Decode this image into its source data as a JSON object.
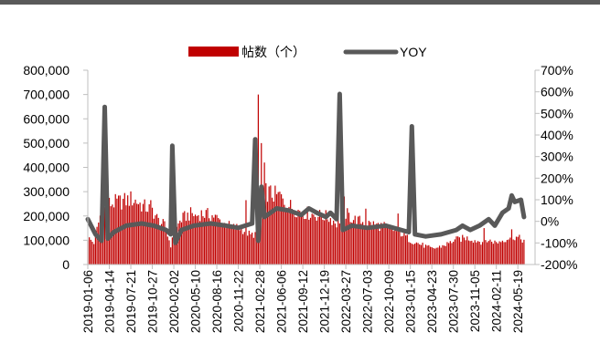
{
  "chart_data": {
    "type": "bar+line",
    "title": "",
    "legend": {
      "placement": "top-center",
      "entries": [
        {
          "name": "帖数（个）",
          "kind": "bar",
          "color": "#c00000"
        },
        {
          "name": "YOY",
          "kind": "line",
          "color": "#595959"
        }
      ]
    },
    "y_left": {
      "range": [
        0,
        800000
      ],
      "ticks": [
        0,
        100000,
        200000,
        300000,
        400000,
        500000,
        600000,
        700000,
        800000
      ],
      "tick_labels": [
        "0",
        "100,000",
        "200,000",
        "300,000",
        "400,000",
        "500,000",
        "600,000",
        "700,000",
        "800,000"
      ]
    },
    "y_right": {
      "range": [
        -200,
        700
      ],
      "ticks": [
        -200,
        -100,
        0,
        100,
        200,
        300,
        400,
        500,
        600,
        700
      ],
      "tick_labels": [
        "-200%",
        "-100%",
        "0%",
        "100%",
        "200%",
        "300%",
        "400%",
        "500%",
        "600%",
        "700%"
      ]
    },
    "x_labels": [
      "2019-01-06",
      "2019-04-14",
      "2019-07-21",
      "2019-10-27",
      "2020-02-02",
      "2020-05-10",
      "2020-08-16",
      "2020-11-22",
      "2021-02-28",
      "2021-06-06",
      "2021-09-12",
      "2021-12-19",
      "2022-03-27",
      "2022-07-03",
      "2022-10-09",
      "2023-01-15",
      "2023-04-23",
      "2023-07-30",
      "2023-11-05",
      "2024-02-11",
      "2024-05-19"
    ],
    "bar_anchors": [
      [
        "2019-01-06",
        110000
      ],
      [
        "2019-02-03",
        90000
      ],
      [
        "2019-03-03",
        200000
      ],
      [
        "2019-03-31",
        240000
      ],
      [
        "2019-04-14",
        250000
      ],
      [
        "2019-05-12",
        255000
      ],
      [
        "2019-06-09",
        260000
      ],
      [
        "2019-07-07",
        265000
      ],
      [
        "2019-07-21",
        270000
      ],
      [
        "2019-08-18",
        260000
      ],
      [
        "2019-09-15",
        240000
      ],
      [
        "2019-10-13",
        230000
      ],
      [
        "2019-10-27",
        225000
      ],
      [
        "2019-11-24",
        180000
      ],
      [
        "2019-12-22",
        160000
      ],
      [
        "2020-01-19",
        80000
      ],
      [
        "2020-02-02",
        120000
      ],
      [
        "2020-03-01",
        180000
      ],
      [
        "2020-03-29",
        200000
      ],
      [
        "2020-04-26",
        210000
      ],
      [
        "2020-05-10",
        200000
      ],
      [
        "2020-06-07",
        210000
      ],
      [
        "2020-07-05",
        205000
      ],
      [
        "2020-08-02",
        200000
      ],
      [
        "2020-08-16",
        190000
      ],
      [
        "2020-09-13",
        170000
      ],
      [
        "2020-10-11",
        160000
      ],
      [
        "2020-11-08",
        150000
      ],
      [
        "2020-11-22",
        155000
      ],
      [
        "2020-12-20",
        140000
      ],
      [
        "2021-01-17",
        120000
      ],
      [
        "2021-02-14",
        130000
      ],
      [
        "2021-02-28",
        240000
      ],
      [
        "2021-03-28",
        300000
      ],
      [
        "2021-04-25",
        290000
      ],
      [
        "2021-05-23",
        280000
      ],
      [
        "2021-06-06",
        270000
      ],
      [
        "2021-07-04",
        250000
      ],
      [
        "2021-08-01",
        230000
      ],
      [
        "2021-08-29",
        220000
      ],
      [
        "2021-09-12",
        215000
      ],
      [
        "2021-10-10",
        210000
      ],
      [
        "2021-11-07",
        205000
      ],
      [
        "2021-12-05",
        200000
      ],
      [
        "2021-12-19",
        200000
      ],
      [
        "2022-01-16",
        190000
      ],
      [
        "2022-02-13",
        170000
      ],
      [
        "2022-03-13",
        200000
      ],
      [
        "2022-03-27",
        210000
      ],
      [
        "2022-04-24",
        190000
      ],
      [
        "2022-05-22",
        180000
      ],
      [
        "2022-06-19",
        175000
      ],
      [
        "2022-07-03",
        170000
      ],
      [
        "2022-07-31",
        165000
      ],
      [
        "2022-08-28",
        160000
      ],
      [
        "2022-09-25",
        155000
      ],
      [
        "2022-10-09",
        150000
      ],
      [
        "2022-11-06",
        140000
      ],
      [
        "2022-12-04",
        130000
      ],
      [
        "2023-01-01",
        110000
      ],
      [
        "2023-01-15",
        100000
      ],
      [
        "2023-02-12",
        90000
      ],
      [
        "2023-03-12",
        80000
      ],
      [
        "2023-04-09",
        70000
      ],
      [
        "2023-04-23",
        65000
      ],
      [
        "2023-05-21",
        70000
      ],
      [
        "2023-06-18",
        80000
      ],
      [
        "2023-07-16",
        90000
      ],
      [
        "2023-07-30",
        100000
      ],
      [
        "2023-08-27",
        105000
      ],
      [
        "2023-09-24",
        110000
      ],
      [
        "2023-10-22",
        105000
      ],
      [
        "2023-11-05",
        100000
      ],
      [
        "2023-12-03",
        95000
      ],
      [
        "2023-12-31",
        100000
      ],
      [
        "2024-01-28",
        95000
      ],
      [
        "2024-02-11",
        90000
      ],
      [
        "2024-03-10",
        100000
      ],
      [
        "2024-04-07",
        110000
      ],
      [
        "2024-05-05",
        115000
      ],
      [
        "2024-05-19",
        110000
      ],
      [
        "2024-06-16",
        100000
      ]
    ],
    "bar_spikes": [
      [
        "2019-03-17",
        300000
      ],
      [
        "2019-10-20",
        265000
      ],
      [
        "2020-12-27",
        265000
      ],
      [
        "2021-02-21",
        700000
      ],
      [
        "2021-03-07",
        500000
      ],
      [
        "2021-03-21",
        420000
      ],
      [
        "2021-05-30",
        300000
      ],
      [
        "2022-03-20",
        280000
      ],
      [
        "2022-06-26",
        230000
      ],
      [
        "2022-11-20",
        210000
      ],
      [
        "2023-12-17",
        150000
      ],
      [
        "2024-04-21",
        145000
      ]
    ],
    "yoy_points": [
      [
        "2019-01-06",
        10
      ],
      [
        "2019-02-10",
        -60
      ],
      [
        "2019-03-10",
        -90
      ],
      [
        "2019-03-24",
        530
      ],
      [
        "2019-04-07",
        -80
      ],
      [
        "2019-05-05",
        -50
      ],
      [
        "2019-06-30",
        -20
      ],
      [
        "2019-09-08",
        -10
      ],
      [
        "2019-11-03",
        -20
      ],
      [
        "2019-12-29",
        -40
      ],
      [
        "2020-01-19",
        -60
      ],
      [
        "2020-01-26",
        350
      ],
      [
        "2020-02-09",
        -100
      ],
      [
        "2020-03-08",
        -40
      ],
      [
        "2020-05-03",
        -20
      ],
      [
        "2020-07-19",
        -10
      ],
      [
        "2020-09-27",
        -20
      ],
      [
        "2020-11-22",
        -30
      ],
      [
        "2021-01-24",
        -10
      ],
      [
        "2021-02-07",
        380
      ],
      [
        "2021-02-21",
        -90
      ],
      [
        "2021-03-07",
        160
      ],
      [
        "2021-03-21",
        20
      ],
      [
        "2021-05-16",
        60
      ],
      [
        "2021-07-11",
        50
      ],
      [
        "2021-09-05",
        30
      ],
      [
        "2021-10-10",
        60
      ],
      [
        "2021-11-14",
        40
      ],
      [
        "2021-12-26",
        20
      ],
      [
        "2022-01-16",
        40
      ],
      [
        "2022-02-13",
        10
      ],
      [
        "2022-02-27",
        590
      ],
      [
        "2022-03-13",
        -40
      ],
      [
        "2022-04-24",
        -20
      ],
      [
        "2022-07-03",
        -30
      ],
      [
        "2022-09-25",
        -20
      ],
      [
        "2022-12-04",
        -40
      ],
      [
        "2023-01-08",
        -50
      ],
      [
        "2023-01-22",
        440
      ],
      [
        "2023-02-05",
        -60
      ],
      [
        "2023-03-26",
        -70
      ],
      [
        "2023-06-04",
        -60
      ],
      [
        "2023-08-13",
        -40
      ],
      [
        "2023-09-10",
        -20
      ],
      [
        "2023-10-15",
        -40
      ],
      [
        "2023-11-26",
        -20
      ],
      [
        "2024-01-07",
        10
      ],
      [
        "2024-02-04",
        -20
      ],
      [
        "2024-03-10",
        40
      ],
      [
        "2024-04-07",
        60
      ],
      [
        "2024-04-21",
        120
      ],
      [
        "2024-05-05",
        90
      ],
      [
        "2024-06-02",
        100
      ],
      [
        "2024-06-16",
        20
      ]
    ]
  }
}
